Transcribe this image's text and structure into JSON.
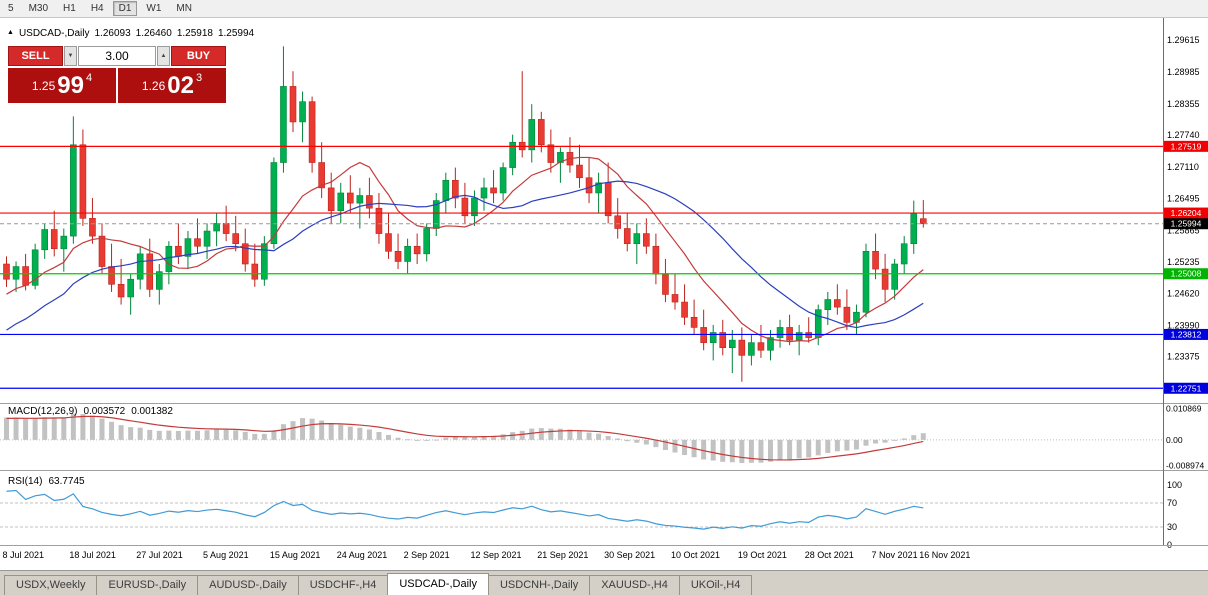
{
  "toolbar": {
    "periods": [
      {
        "label": "5",
        "active": false
      },
      {
        "label": "M30",
        "active": false
      },
      {
        "label": "H1",
        "active": false
      },
      {
        "label": "H4",
        "active": false
      },
      {
        "label": "D1",
        "active": true
      },
      {
        "label": "W1",
        "active": false
      },
      {
        "label": "MN",
        "active": false
      }
    ]
  },
  "icons": {
    "collapse_marker": "▲",
    "spin_up": "▲",
    "spin_down": "▼"
  },
  "symbol_line": {
    "title": "USDCAD-,Daily",
    "open": "1.26093",
    "high": "1.26460",
    "low": "1.25918",
    "close": "1.25994"
  },
  "trade_panel": {
    "sell_label": "SELL",
    "buy_label": "BUY",
    "volume": "3.00",
    "sell_price": {
      "prefix": "1.25",
      "big": "99",
      "sup": "4"
    },
    "buy_price": {
      "prefix": "1.26",
      "big": "02",
      "sup": "3"
    }
  },
  "chart_data": {
    "type": "candlestick",
    "symbol": "USDCAD-,Daily",
    "ylim": [
      1.225,
      1.2995
    ],
    "colors": {
      "up": "#00B050",
      "up_stroke": "#00843B",
      "down": "#EA3B33",
      "down_stroke": "#BC231C"
    },
    "price_axis_ticks": [
      "1.29615",
      "1.28985",
      "1.28355",
      "1.27740",
      "1.27110",
      "1.26495",
      "1.25865",
      "1.25235",
      "1.24620",
      "1.23990",
      "1.23375"
    ],
    "x_labels": [
      "8 Jul 2021",
      "18 Jul 2021",
      "27 Jul 2021",
      "5 Aug 2021",
      "15 Aug 2021",
      "24 Aug 2021",
      "2 Sep 2021",
      "12 Sep 2021",
      "21 Sep 2021",
      "30 Sep 2021",
      "10 Oct 2021",
      "19 Oct 2021",
      "28 Oct 2021",
      "7 Nov 2021",
      "16 Nov 2021"
    ],
    "x_label_indices": [
      0,
      7,
      14,
      21,
      28,
      35,
      42,
      49,
      56,
      63,
      70,
      77,
      84,
      91,
      96
    ],
    "hlines": [
      {
        "price": 1.27519,
        "label": "1.27519",
        "line_color": "#FF0000",
        "badge_color": "#F00000"
      },
      {
        "price": 1.26204,
        "label": "1.26204",
        "line_color": "#FF0000",
        "badge_color": "#F00000"
      },
      {
        "price": 1.25008,
        "label": "1.25008",
        "line_color": "#00CC00",
        "badge_color": "#00B400"
      },
      {
        "price": 1.23812,
        "label": "1.23812",
        "line_color": "#0000FF",
        "badge_color": "#0000DC"
      },
      {
        "price": 1.22751,
        "label": "1.22751",
        "line_color": "#0000FF",
        "badge_color": "#0000DC"
      }
    ],
    "current_price": {
      "value": 1.25994,
      "label": "1.25994",
      "badge_color": "#000000"
    },
    "moving_averages": [
      {
        "period": 10,
        "color": "#C43A3A"
      },
      {
        "period": 21,
        "color": "#2B3FBE"
      }
    ],
    "indicator_warmup": {
      "bars": 34,
      "from": 1.2075,
      "to": 1.251
    },
    "macd": {
      "label": "MACD(12,26,9)",
      "value1": "0.003572",
      "value2": "0.001382",
      "fast": 12,
      "slow": 26,
      "signal": 9,
      "axis_ticks": [
        "0.010869",
        "0.00",
        "-0.008974"
      ],
      "ylim": [
        -0.0098,
        0.0118
      ],
      "histogram_color": "#C2C2C2",
      "signal_color": "#C43A3A"
    },
    "rsi": {
      "label": "RSI(14)",
      "value": "63.7745",
      "period": 14,
      "axis_ticks": [
        "100",
        "70",
        "30",
        "0"
      ],
      "levels": [
        70,
        30
      ],
      "ylim": [
        0,
        100
      ],
      "line_color": "#3F9AD6"
    },
    "candles": [
      [
        1.252,
        1.2535,
        1.2475,
        1.249
      ],
      [
        1.249,
        1.2525,
        1.2465,
        1.2515
      ],
      [
        1.2515,
        1.254,
        1.2468,
        1.2478
      ],
      [
        1.2478,
        1.256,
        1.247,
        1.2548
      ],
      [
        1.2548,
        1.26,
        1.253,
        1.2588
      ],
      [
        1.2588,
        1.2625,
        1.2535,
        1.255
      ],
      [
        1.255,
        1.259,
        1.2505,
        1.2575
      ],
      [
        1.2575,
        1.2811,
        1.256,
        1.2755
      ],
      [
        1.2755,
        1.2785,
        1.2595,
        1.261
      ],
      [
        1.261,
        1.265,
        1.256,
        1.2575
      ],
      [
        1.2575,
        1.26,
        1.25,
        1.2515
      ],
      [
        1.2515,
        1.256,
        1.2465,
        1.248
      ],
      [
        1.248,
        1.253,
        1.244,
        1.2455
      ],
      [
        1.2455,
        1.25,
        1.242,
        1.249
      ],
      [
        1.249,
        1.2555,
        1.247,
        1.254
      ],
      [
        1.254,
        1.257,
        1.2455,
        1.247
      ],
      [
        1.247,
        1.252,
        1.244,
        1.2505
      ],
      [
        1.2505,
        1.2565,
        1.248,
        1.2555
      ],
      [
        1.2555,
        1.26,
        1.252,
        1.2535
      ],
      [
        1.2535,
        1.2585,
        1.251,
        1.257
      ],
      [
        1.257,
        1.261,
        1.254,
        1.2555
      ],
      [
        1.2555,
        1.26,
        1.253,
        1.2585
      ],
      [
        1.2585,
        1.262,
        1.2555,
        1.26
      ],
      [
        1.26,
        1.2635,
        1.2565,
        1.258
      ],
      [
        1.258,
        1.2615,
        1.2545,
        1.256
      ],
      [
        1.256,
        1.259,
        1.2505,
        1.252
      ],
      [
        1.252,
        1.256,
        1.2475,
        1.249
      ],
      [
        1.249,
        1.2575,
        1.2477,
        1.256
      ],
      [
        1.256,
        1.273,
        1.255,
        1.272
      ],
      [
        1.272,
        1.2949,
        1.27,
        1.287
      ],
      [
        1.287,
        1.29,
        1.278,
        1.28
      ],
      [
        1.28,
        1.286,
        1.276,
        1.284
      ],
      [
        1.284,
        1.285,
        1.27,
        1.272
      ],
      [
        1.272,
        1.276,
        1.265,
        1.267
      ],
      [
        1.267,
        1.27,
        1.26,
        1.2625
      ],
      [
        1.2625,
        1.268,
        1.26,
        1.266
      ],
      [
        1.266,
        1.2695,
        1.262,
        1.264
      ],
      [
        1.264,
        1.267,
        1.259,
        1.2655
      ],
      [
        1.2655,
        1.269,
        1.261,
        1.263
      ],
      [
        1.263,
        1.266,
        1.256,
        1.258
      ],
      [
        1.258,
        1.262,
        1.253,
        1.2545
      ],
      [
        1.2545,
        1.258,
        1.251,
        1.2525
      ],
      [
        1.2525,
        1.257,
        1.25,
        1.2555
      ],
      [
        1.2555,
        1.258,
        1.252,
        1.254
      ],
      [
        1.254,
        1.26,
        1.2525,
        1.259
      ],
      [
        1.259,
        1.266,
        1.2575,
        1.2645
      ],
      [
        1.2645,
        1.27,
        1.262,
        1.2685
      ],
      [
        1.2685,
        1.271,
        1.263,
        1.265
      ],
      [
        1.265,
        1.268,
        1.26,
        1.2615
      ],
      [
        1.2615,
        1.2665,
        1.2595,
        1.265
      ],
      [
        1.265,
        1.269,
        1.2625,
        1.267
      ],
      [
        1.267,
        1.2705,
        1.264,
        1.266
      ],
      [
        1.266,
        1.272,
        1.2645,
        1.271
      ],
      [
        1.271,
        1.2775,
        1.2695,
        1.276
      ],
      [
        1.276,
        1.29,
        1.273,
        1.2745
      ],
      [
        1.2745,
        1.2835,
        1.272,
        1.2805
      ],
      [
        1.2805,
        1.282,
        1.274,
        1.2755
      ],
      [
        1.2755,
        1.2785,
        1.27,
        1.272
      ],
      [
        1.272,
        1.275,
        1.268,
        1.274
      ],
      [
        1.274,
        1.277,
        1.27,
        1.2715
      ],
      [
        1.2715,
        1.2755,
        1.267,
        1.269
      ],
      [
        1.269,
        1.273,
        1.264,
        1.266
      ],
      [
        1.266,
        1.27,
        1.262,
        1.268
      ],
      [
        1.268,
        1.272,
        1.26,
        1.2615
      ],
      [
        1.2615,
        1.265,
        1.257,
        1.259
      ],
      [
        1.259,
        1.262,
        1.2545,
        1.256
      ],
      [
        1.256,
        1.26,
        1.252,
        1.258
      ],
      [
        1.258,
        1.261,
        1.254,
        1.2555
      ],
      [
        1.2555,
        1.258,
        1.248,
        1.25
      ],
      [
        1.25,
        1.253,
        1.2445,
        1.246
      ],
      [
        1.246,
        1.25,
        1.243,
        1.2445
      ],
      [
        1.2445,
        1.248,
        1.24,
        1.2415
      ],
      [
        1.2415,
        1.245,
        1.238,
        1.2395
      ],
      [
        1.2395,
        1.243,
        1.235,
        1.2365
      ],
      [
        1.2365,
        1.24,
        1.233,
        1.2385
      ],
      [
        1.2385,
        1.241,
        1.234,
        1.2355
      ],
      [
        1.2355,
        1.239,
        1.2305,
        1.237
      ],
      [
        1.237,
        1.2395,
        1.2288,
        1.234
      ],
      [
        1.234,
        1.238,
        1.232,
        1.2365
      ],
      [
        1.2365,
        1.24,
        1.2335,
        1.235
      ],
      [
        1.235,
        1.239,
        1.233,
        1.2375
      ],
      [
        1.2375,
        1.241,
        1.2355,
        1.2395
      ],
      [
        1.2395,
        1.242,
        1.236,
        1.237
      ],
      [
        1.237,
        1.24,
        1.234,
        1.2385
      ],
      [
        1.2385,
        1.2415,
        1.2365,
        1.2375
      ],
      [
        1.2375,
        1.244,
        1.236,
        1.243
      ],
      [
        1.243,
        1.2465,
        1.24,
        1.245
      ],
      [
        1.245,
        1.248,
        1.242,
        1.2435
      ],
      [
        1.2435,
        1.247,
        1.239,
        1.2405
      ],
      [
        1.2405,
        1.244,
        1.238,
        1.2425
      ],
      [
        1.2425,
        1.256,
        1.2415,
        1.2545
      ],
      [
        1.2545,
        1.258,
        1.249,
        1.251
      ],
      [
        1.251,
        1.254,
        1.2445,
        1.247
      ],
      [
        1.247,
        1.253,
        1.245,
        1.252
      ],
      [
        1.252,
        1.2575,
        1.25,
        1.256
      ],
      [
        1.256,
        1.2645,
        1.254,
        1.262
      ],
      [
        1.26093,
        1.2646,
        1.25918,
        1.25994
      ]
    ]
  },
  "tabs": [
    {
      "label": "USDX,Weekly",
      "active": false
    },
    {
      "label": "EURUSD-,Daily",
      "active": false
    },
    {
      "label": "AUDUSD-,Daily",
      "active": false
    },
    {
      "label": "USDCHF-,H4",
      "active": false
    },
    {
      "label": "USDCAD-,Daily",
      "active": true
    },
    {
      "label": "USDCNH-,Daily",
      "active": false
    },
    {
      "label": "XAUUSD-,H4",
      "active": false
    },
    {
      "label": "UKOil-,H4",
      "active": false
    }
  ]
}
